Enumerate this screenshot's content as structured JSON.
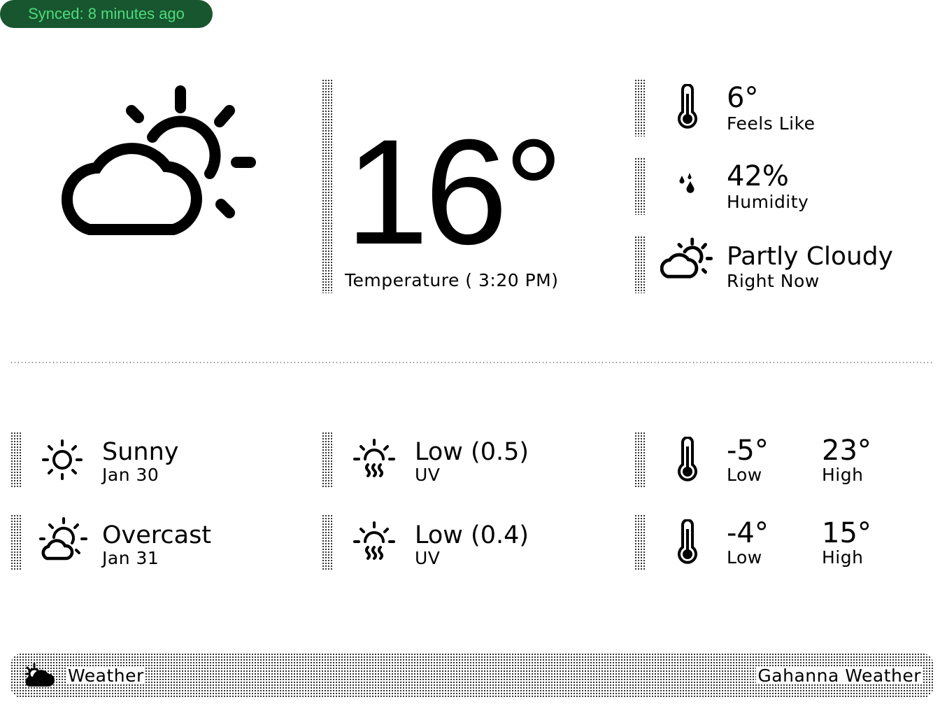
{
  "sync_badge": {
    "text": "Synced: 8 minutes ago",
    "bg_color": "#17562f",
    "text_color": "#4ddb7c"
  },
  "current": {
    "icon": "partly-cloudy-icon",
    "temperature": "16°",
    "temperature_label": "Temperature ( 3:20 PM)",
    "feels_like": {
      "value": "6°",
      "label": "Feels Like",
      "icon": "thermometer-icon"
    },
    "humidity": {
      "value": "42%",
      "label": "Humidity",
      "icon": "droplets-icon"
    },
    "condition": {
      "value": "Partly Cloudy",
      "label": "Right Now",
      "icon": "partly-cloudy-icon"
    }
  },
  "forecast": [
    {
      "condition": "Sunny",
      "date": "Jan 30",
      "condition_icon": "sun-icon",
      "uv_value": "Low (0.5)",
      "uv_label": "UV",
      "low": "-5°",
      "low_label": "Low",
      "high": "23°",
      "high_label": "High"
    },
    {
      "condition": "Overcast",
      "date": "Jan 31",
      "condition_icon": "overcast-icon",
      "uv_value": "Low (0.4)",
      "uv_label": "UV",
      "low": "-4°",
      "low_label": "Low",
      "high": "15°",
      "high_label": "High"
    }
  ],
  "footer": {
    "title": "Weather",
    "instance": "Gahanna Weather",
    "icon": "weather-app-icon"
  }
}
